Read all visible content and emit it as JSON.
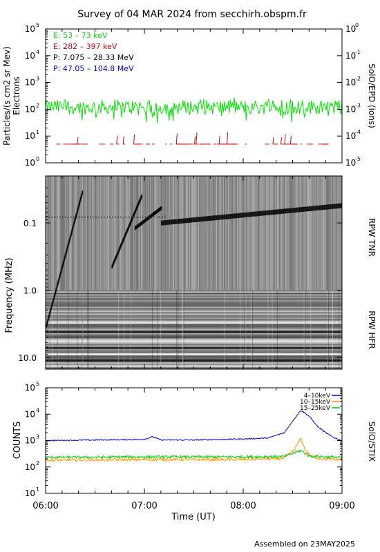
{
  "title": "Survey of 04 MAR 2024 from secchirh.obspm.fr",
  "footer": "Assembled on 23MAY2025",
  "time_axis": {
    "label": "Time (UT)",
    "ticks": [
      "06:00",
      "07:00",
      "08:00",
      "09:00"
    ],
    "range": [
      "06:00",
      "09:00"
    ]
  },
  "chart_data": [
    {
      "type": "line",
      "panel": "epd",
      "ylabel": "Particles/(s cm2 sr Mev)",
      "ylabel2": "Electrons",
      "right_label": "SolO/EPD (ions)",
      "yscale": "log",
      "ylim": [
        1,
        100000
      ],
      "yticks": [
        "10",
        "10",
        "10",
        "10",
        "10",
        "10"
      ],
      "ytick_exp": [
        "0",
        "1",
        "2",
        "3",
        "4",
        "5"
      ],
      "y2lim": [
        1e-05,
        1
      ],
      "y2ticks": [
        "10",
        "10",
        "10",
        "10",
        "10",
        "10"
      ],
      "y2tick_exp": [
        "0",
        "-1",
        "-2",
        "-3",
        "-4",
        "-5"
      ],
      "legend": [
        {
          "text": "E: 53 – 73 keV",
          "color": "#00e000"
        },
        {
          "text": "E: 282 – 397 keV",
          "color": "#cc0000"
        },
        {
          "text": "P: 7.075 – 28.33 MeV",
          "color": "#000000"
        },
        {
          "text": "P: 47.05 – 104.8 MeV",
          "color": "#0000cc"
        }
      ],
      "series": [
        {
          "name": "E: 53 – 73 keV",
          "color": "#00e000",
          "typical": 120,
          "min": 30,
          "max": 280
        },
        {
          "name": "E: 282 – 397 keV",
          "color": "#cc0000",
          "typical": 5,
          "min": 5,
          "max": 14
        }
      ]
    },
    {
      "type": "heatmap",
      "panel": "rpw",
      "ylabel": "Frequency (MHz)",
      "yscale": "log",
      "ylim": [
        0.02,
        15
      ],
      "yticks": [
        "0.1",
        "1.0",
        "10.0"
      ],
      "right_labels": [
        "RPW TNR",
        "RPW HFR"
      ],
      "tnr_hfr_boundary_mhz": 1.0,
      "drifting_bursts": [
        {
          "start": "06:00",
          "f_start_mhz": 3.5,
          "end": "06:22",
          "f_end_mhz": 0.035
        },
        {
          "start": "06:40",
          "f_start_mhz": 0.45,
          "end": "06:58",
          "f_end_mhz": 0.04
        },
        {
          "start": "06:54",
          "f_start_mhz": 0.12,
          "end": "07:10",
          "f_end_mhz": 0.06
        },
        {
          "start": "07:10",
          "f_start_mhz": 0.1,
          "end": "09:00",
          "f_end_mhz": 0.055
        }
      ]
    },
    {
      "type": "line",
      "panel": "stix",
      "ylabel": "COUNTS",
      "right_label": "SolO/STIX",
      "yscale": "log",
      "ylim": [
        10,
        100000
      ],
      "yticks": [
        "10",
        "10",
        "10",
        "10",
        "10"
      ],
      "ytick_exp": [
        "1",
        "2",
        "3",
        "4",
        "5"
      ],
      "legend_position": "top-right",
      "series": [
        {
          "name": "4–10keV",
          "color": "#0000cc",
          "points": [
            [
              "06:00",
              1000
            ],
            [
              "06:30",
              1050
            ],
            [
              "07:00",
              1100
            ],
            [
              "07:05",
              1400
            ],
            [
              "07:10",
              1050
            ],
            [
              "07:30",
              1050
            ],
            [
              "08:00",
              1150
            ],
            [
              "08:15",
              1250
            ],
            [
              "08:25",
              2000
            ],
            [
              "08:30",
              5500
            ],
            [
              "08:35",
              14000
            ],
            [
              "08:40",
              8500
            ],
            [
              "08:45",
              3500
            ],
            [
              "08:50",
              2000
            ],
            [
              "08:55",
              1300
            ],
            [
              "09:00",
              1000
            ]
          ]
        },
        {
          "name": "10–15keV",
          "color": "#ff9900",
          "points": [
            [
              "06:00",
              180
            ],
            [
              "07:00",
              190
            ],
            [
              "08:00",
              190
            ],
            [
              "08:25",
              210
            ],
            [
              "08:31",
              450
            ],
            [
              "08:35",
              1200
            ],
            [
              "08:38",
              400
            ],
            [
              "08:42",
              230
            ],
            [
              "08:50",
              200
            ],
            [
              "09:00",
              190
            ]
          ]
        },
        {
          "name": "15–25keV",
          "color": "#00cc00",
          "points": [
            [
              "06:00",
              230
            ],
            [
              "07:00",
              240
            ],
            [
              "08:00",
              240
            ],
            [
              "08:25",
              250
            ],
            [
              "08:33",
              380
            ],
            [
              "08:35",
              420
            ],
            [
              "08:40",
              260
            ],
            [
              "08:50",
              240
            ],
            [
              "09:00",
              230
            ]
          ]
        }
      ]
    }
  ]
}
